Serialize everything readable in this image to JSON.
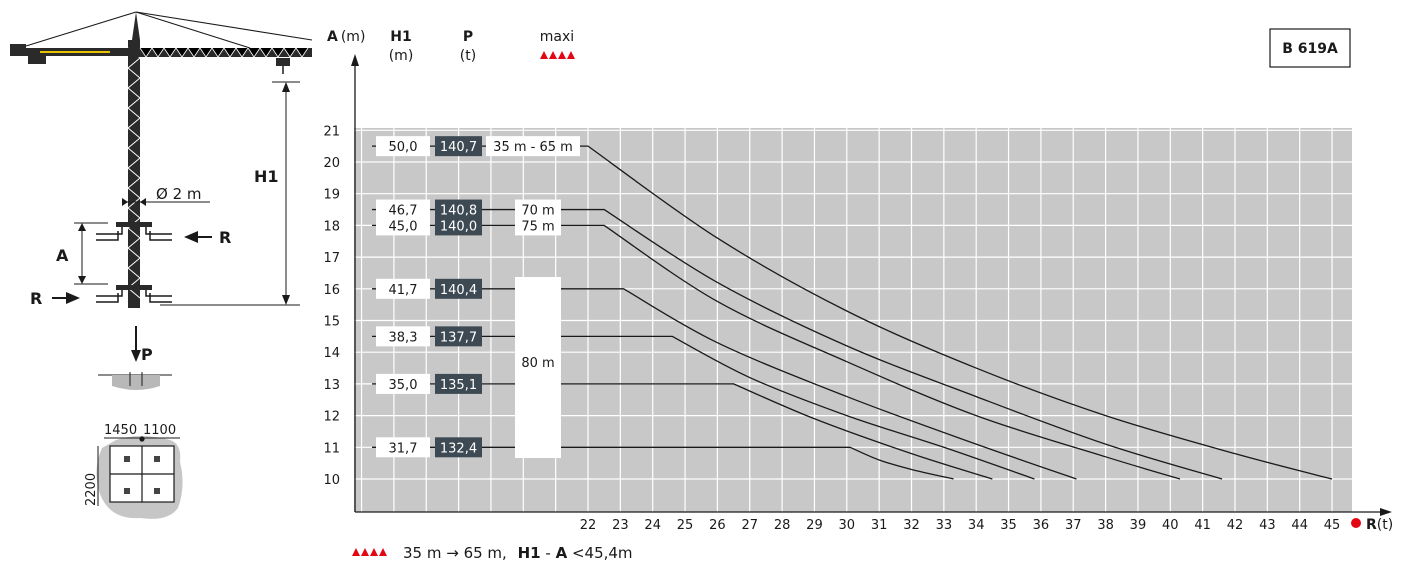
{
  "header": {
    "a_label": "A",
    "a_unit": "(m)",
    "h1_label": "H1",
    "h1_unit": "(m)",
    "p_label": "P",
    "p_unit": "(t)",
    "maxi_label": "maxi"
  },
  "model_badge": "B 619A",
  "diagram": {
    "h1_label": "H1",
    "a_label": "A",
    "r_label": "R",
    "p_label": "P",
    "mast_dim": "Ø 2 m",
    "base_dim_left": "1450",
    "base_dim_right": "1100",
    "base_dim_side": "2200"
  },
  "x_axis_label": "R",
  "x_axis_unit": "(t)",
  "footer": {
    "range": "35 m → 65 m,",
    "formula_h1": "H1",
    "formula_sep": " - ",
    "formula_a": "A",
    "formula_rest": "<45,4m"
  },
  "colors": {
    "grid_bg": "#c8c8c8",
    "grid_line": "#ffffff",
    "p_box": "#3d4a53",
    "curve": "#1a1a1a",
    "accent_red": "#e30613"
  },
  "chart_data": {
    "type": "line",
    "xlabel": "R (t)",
    "ylabel": "A (m)",
    "xlim": [
      22,
      45
    ],
    "ylim": [
      10,
      21
    ],
    "x_ticks": [
      22,
      23,
      24,
      25,
      26,
      27,
      28,
      29,
      30,
      31,
      32,
      33,
      34,
      35,
      36,
      37,
      38,
      39,
      40,
      41,
      42,
      43,
      44,
      45
    ],
    "y_ticks": [
      10,
      11,
      12,
      13,
      14,
      15,
      16,
      17,
      18,
      19,
      20,
      21
    ],
    "series": [
      {
        "name": "35 m - 65 m",
        "h1": "50,0",
        "p": "140,7",
        "points": [
          [
            22,
            20.5
          ],
          [
            26,
            17.6
          ],
          [
            30,
            15.3
          ],
          [
            34,
            13.5
          ],
          [
            38,
            12.0
          ],
          [
            42,
            10.8
          ],
          [
            45,
            10.0
          ]
        ]
      },
      {
        "name": "70 m",
        "h1": "46,7",
        "p": "140,8",
        "points": [
          [
            22.5,
            18.5
          ],
          [
            26,
            16.2
          ],
          [
            30,
            14.2
          ],
          [
            34,
            12.6
          ],
          [
            38,
            11.1
          ],
          [
            41.6,
            10.0
          ]
        ]
      },
      {
        "name": "75 m",
        "h1": "45,0",
        "p": "140,0",
        "points": [
          [
            22.5,
            18.0
          ],
          [
            26,
            15.6
          ],
          [
            30,
            13.7
          ],
          [
            34,
            12.0
          ],
          [
            38,
            10.7
          ],
          [
            40.3,
            10.0
          ]
        ]
      },
      {
        "name": "80 m",
        "h1": "41,7",
        "p": "140,4",
        "points": [
          [
            23.1,
            16.0
          ],
          [
            26,
            14.3
          ],
          [
            30,
            12.6
          ],
          [
            34,
            11.1
          ],
          [
            37.1,
            10.0
          ]
        ]
      },
      {
        "name": "80 m",
        "h1": "38,3",
        "p": "137,7",
        "points": [
          [
            24.6,
            14.5
          ],
          [
            27,
            13.2
          ],
          [
            30,
            12.0
          ],
          [
            33,
            11.0
          ],
          [
            35.8,
            10.0
          ]
        ]
      },
      {
        "name": "80 m",
        "h1": "35,0",
        "p": "135,1",
        "points": [
          [
            26.5,
            13.0
          ],
          [
            29,
            11.9
          ],
          [
            32,
            10.8
          ],
          [
            34.5,
            10.0
          ]
        ]
      },
      {
        "name": "80 m",
        "h1": "31,7",
        "p": "132,4",
        "points": [
          [
            30.1,
            11.0
          ],
          [
            31,
            10.6
          ],
          [
            32,
            10.3
          ],
          [
            33.3,
            10.0
          ]
        ]
      }
    ],
    "labels": {
      "series_70": "70 m",
      "series_75": "75 m",
      "series_80": "80 m",
      "series_35": "35 m - 65 m"
    }
  }
}
